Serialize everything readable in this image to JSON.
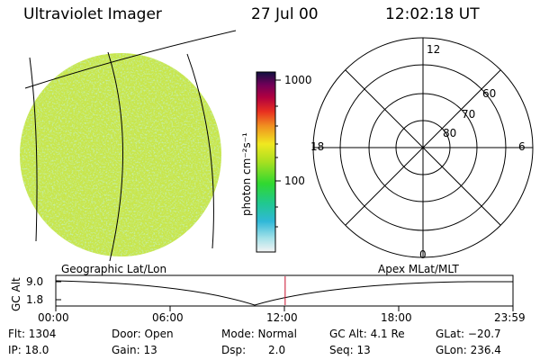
{
  "header": {
    "instrument": "Ultraviolet Imager",
    "date": "27 Jul 00",
    "time": "12:02:18 UT"
  },
  "colorbar": {
    "unit_label": "photon cm⁻²s⁻¹",
    "ticks": [
      "1000",
      "100"
    ]
  },
  "polar_plot": {
    "mlt_labels": {
      "top": "12",
      "bottom": "0",
      "left": "18",
      "right": "6"
    },
    "lat_labels": [
      "60",
      "70",
      "80"
    ]
  },
  "timeline": {
    "axis_title": "GC Alt",
    "y_ticks": [
      "9.0",
      "1.8"
    ],
    "left_caption": "Geographic Lat/Lon",
    "right_caption": "Apex MLat/MLT",
    "x_ticks": [
      "00:00",
      "06:00",
      "12:00",
      "18:00",
      "23:59"
    ],
    "marker_time_hours": 12.04,
    "marker_color": "#c8102e"
  },
  "info": {
    "flt": "Flt: 1304",
    "ip": "IP: 18.0",
    "door": "Door: Open",
    "gain": "Gain: 13",
    "mode": "Mode: Normal",
    "dsp_label": "Dsp:",
    "dsp_value": "2.0",
    "gc_alt": "GC Alt: 4.1 Re",
    "seq": "Seq: 13",
    "glat": "GLat: −20.7",
    "glon": "GLon: 236.4"
  },
  "colors": {
    "background": "#ffffff",
    "foreground": "#000000",
    "image_base": "#cde84a"
  }
}
